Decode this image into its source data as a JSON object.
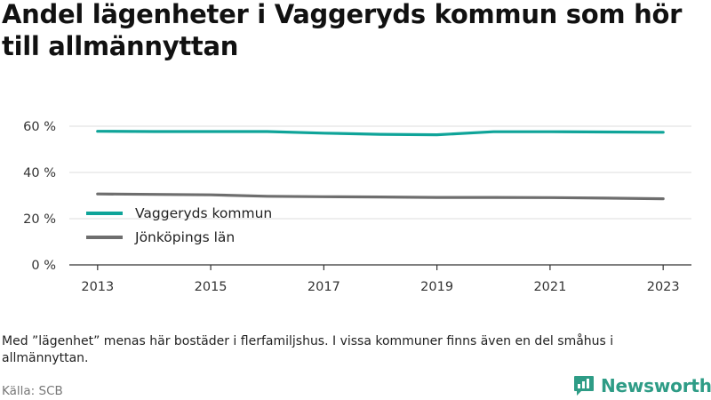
{
  "title": "Andel lägenheter i Vaggeryds kommun som hör till allmännyttan",
  "note": "Med ”lägenhet” menas här bostäder i flerfamiljshus. I vissa kommuner finns även en del småhus i allmännyttan.",
  "source": "Källa: SCB",
  "logo": {
    "text": "Newsworthy",
    "color": "#2e9c86"
  },
  "chart_data": {
    "type": "line",
    "title": "Andel lägenheter i Vaggeryds kommun som hör till allmännyttan",
    "xlabel": "",
    "ylabel": "",
    "x": [
      2013,
      2014,
      2015,
      2016,
      2017,
      2018,
      2019,
      2020,
      2021,
      2022,
      2023
    ],
    "xticks": [
      "2013",
      "2015",
      "2017",
      "2019",
      "2021",
      "2023"
    ],
    "yticks": [
      "0 %",
      "20 %",
      "40 %",
      "60 %"
    ],
    "ylim": [
      0,
      60
    ],
    "grid": "horizontal",
    "legend_position": "center-left",
    "series": [
      {
        "name": "Vaggeryds kommun",
        "color": "#0fa499",
        "values": [
          57.8,
          57.7,
          57.7,
          57.7,
          57.0,
          56.5,
          56.3,
          57.6,
          57.6,
          57.5,
          57.4
        ]
      },
      {
        "name": "Jönköpings län",
        "color": "#6e6e6e",
        "values": [
          30.7,
          30.5,
          30.3,
          29.7,
          29.5,
          29.4,
          29.2,
          29.2,
          29.1,
          28.9,
          28.6
        ]
      }
    ]
  }
}
